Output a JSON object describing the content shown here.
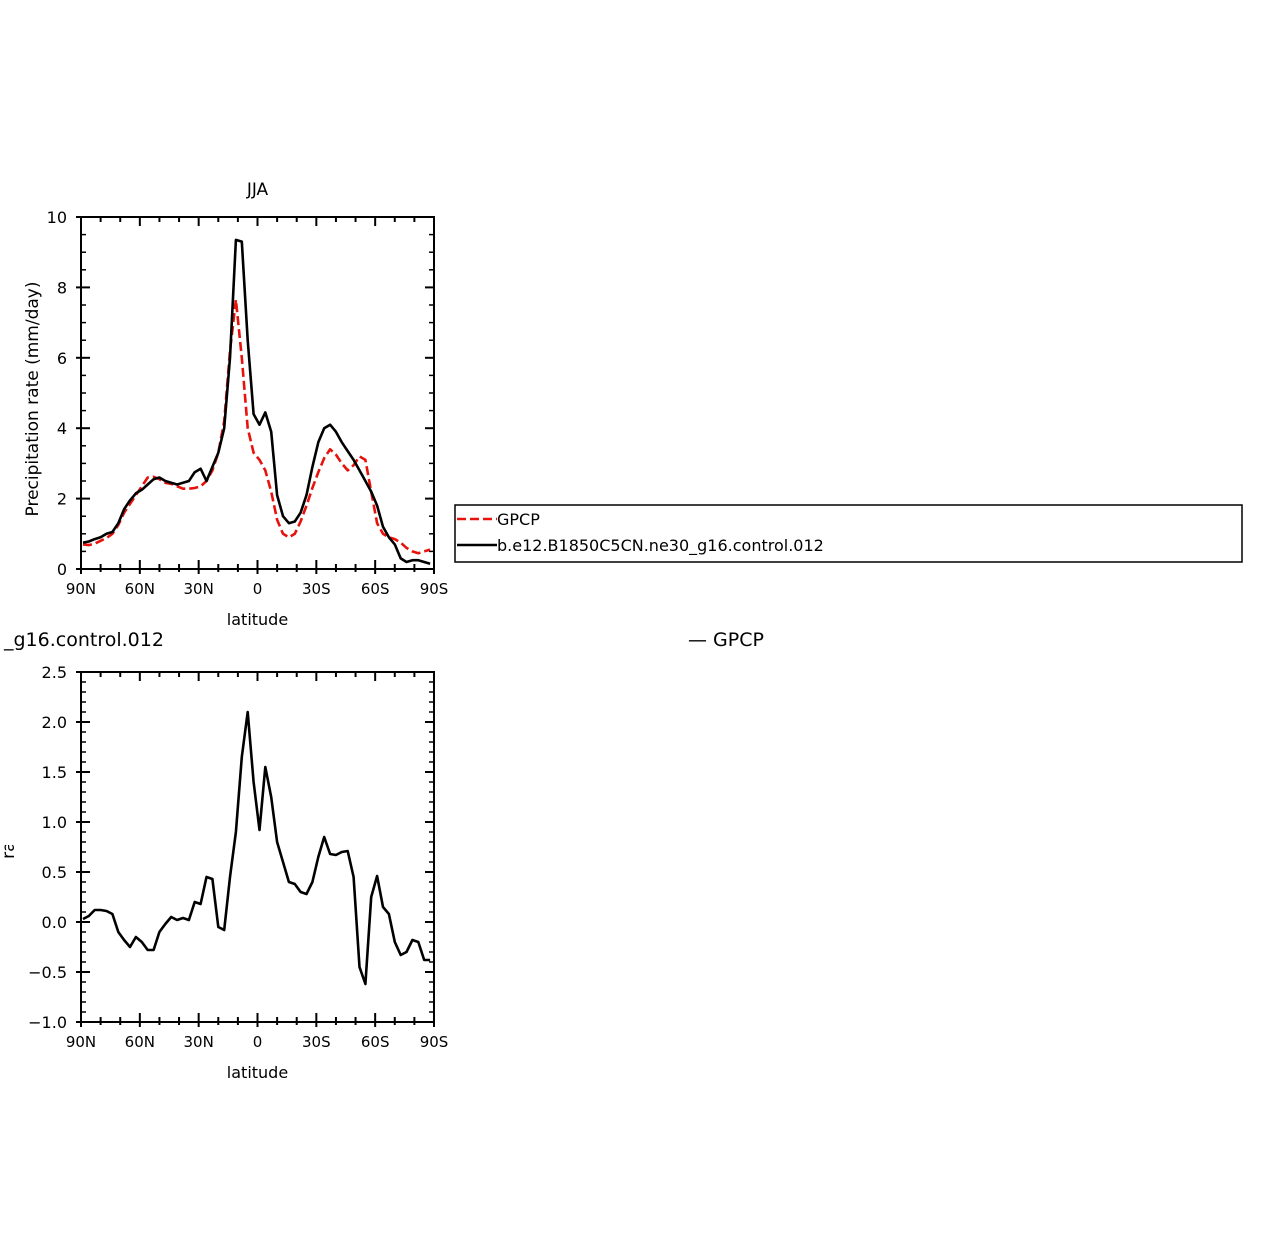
{
  "chart_data": [
    {
      "type": "line",
      "title": "JJA",
      "xlabel": "latitude",
      "ylabel": "Precipitation rate (mm/day)",
      "xlim": [
        90,
        -90
      ],
      "ylim": [
        0,
        10
      ],
      "xticks": [
        90,
        60,
        30,
        0,
        -30,
        -60,
        -90
      ],
      "xtick_labels": [
        "90N",
        "60N",
        "30N",
        "0",
        "30S",
        "60S",
        "90S"
      ],
      "yticks": [
        0,
        2,
        4,
        6,
        8,
        10
      ],
      "ytick_labels": [
        "0",
        "2",
        "4",
        "6",
        "8",
        "10"
      ],
      "legend": {
        "placement": "right, outside plot",
        "entries": [
          "GPCP",
          "b.e12.B1850C5CN.ne30_g16.control.012"
        ]
      },
      "series": [
        {
          "name": "GPCP",
          "color": "#e8120c",
          "dash": "dashed",
          "x": [
            89,
            86,
            83,
            80,
            77,
            74,
            71,
            68,
            65,
            62,
            59,
            56,
            53,
            50,
            47,
            44,
            41,
            38,
            35,
            32,
            29,
            26,
            23,
            20,
            17,
            14,
            11,
            8,
            5,
            2,
            -1,
            -4,
            -7,
            -10,
            -13,
            -16,
            -19,
            -22,
            -25,
            -28,
            -31,
            -34,
            -37,
            -40,
            -43,
            -46,
            -49,
            -52,
            -55,
            -58,
            -61,
            -64,
            -67,
            -70,
            -73,
            -76,
            -79,
            -82,
            -85,
            -88
          ],
          "y": [
            0.7,
            0.68,
            0.72,
            0.8,
            0.88,
            1.0,
            1.25,
            1.6,
            1.85,
            2.1,
            2.35,
            2.6,
            2.62,
            2.55,
            2.45,
            2.42,
            2.35,
            2.28,
            2.28,
            2.3,
            2.35,
            2.5,
            2.8,
            3.3,
            4.2,
            6.2,
            7.65,
            6.0,
            4.0,
            3.3,
            3.1,
            2.8,
            2.2,
            1.4,
            1.0,
            0.9,
            1.0,
            1.35,
            1.8,
            2.3,
            2.75,
            3.15,
            3.4,
            3.25,
            3.0,
            2.8,
            2.95,
            3.2,
            3.1,
            2.2,
            1.3,
            1.0,
            0.9,
            0.85,
            0.75,
            0.6,
            0.5,
            0.45,
            0.5,
            0.55
          ]
        },
        {
          "name": "b.e12.B1850C5CN.ne30_g16.control.012",
          "color": "#000000",
          "dash": "solid",
          "x": [
            89,
            86,
            83,
            80,
            77,
            74,
            71,
            68,
            65,
            62,
            59,
            56,
            53,
            50,
            47,
            44,
            41,
            38,
            35,
            32,
            29,
            26,
            23,
            20,
            17,
            14,
            11,
            8,
            5,
            2,
            -1,
            -4,
            -7,
            -10,
            -13,
            -16,
            -19,
            -22,
            -25,
            -28,
            -31,
            -34,
            -37,
            -40,
            -43,
            -46,
            -49,
            -52,
            -55,
            -58,
            -61,
            -64,
            -67,
            -70,
            -73,
            -76,
            -79,
            -82,
            -85,
            -88
          ],
          "y": [
            0.75,
            0.78,
            0.85,
            0.9,
            1.0,
            1.05,
            1.3,
            1.7,
            1.95,
            2.15,
            2.25,
            2.4,
            2.55,
            2.6,
            2.5,
            2.45,
            2.4,
            2.45,
            2.5,
            2.75,
            2.85,
            2.5,
            2.9,
            3.3,
            4.0,
            6.0,
            9.35,
            9.3,
            6.5,
            4.4,
            4.1,
            4.45,
            3.9,
            2.1,
            1.5,
            1.3,
            1.35,
            1.6,
            2.1,
            2.9,
            3.6,
            4.0,
            4.1,
            3.9,
            3.6,
            3.35,
            3.1,
            2.8,
            2.5,
            2.2,
            1.8,
            1.2,
            0.9,
            0.7,
            0.3,
            0.2,
            0.25,
            0.25,
            0.2,
            0.15
          ]
        }
      ]
    },
    {
      "type": "line",
      "title": "_g16.control.012",
      "title_right": "— GPCP",
      "xlabel": "latitude",
      "ylabel": "Precipitation rate (mm/day)",
      "xlim": [
        90,
        -90
      ],
      "ylim": [
        -1.0,
        2.5
      ],
      "xticks": [
        90,
        60,
        30,
        0,
        -30,
        -60,
        -90
      ],
      "xtick_labels": [
        "90N",
        "60N",
        "30N",
        "0",
        "30S",
        "60S",
        "90S"
      ],
      "yticks": [
        -1.0,
        -0.5,
        0.0,
        0.5,
        1.0,
        1.5,
        2.0,
        2.5
      ],
      "ytick_labels": [
        "−1.0",
        "−0.5",
        "0.0",
        "0.5",
        "1.0",
        "1.5",
        "2.0",
        "2.5"
      ],
      "series": [
        {
          "color": "#000000",
          "dash": "solid",
          "x": [
            89,
            86,
            83,
            80,
            77,
            74,
            71,
            68,
            65,
            62,
            59,
            56,
            53,
            50,
            47,
            44,
            41,
            38,
            35,
            32,
            29,
            26,
            23,
            20,
            17,
            14,
            11,
            8,
            5,
            2,
            -1,
            -4,
            -7,
            -10,
            -13,
            -16,
            -19,
            -22,
            -25,
            -28,
            -31,
            -34,
            -37,
            -40,
            -43,
            -46,
            -49,
            -52,
            -55,
            -58,
            -61,
            -64,
            -67,
            -70,
            -73,
            -76,
            -79,
            -82,
            -85,
            -88
          ],
          "y": [
            0.03,
            0.06,
            0.12,
            0.12,
            0.11,
            0.08,
            -0.1,
            -0.18,
            -0.25,
            -0.15,
            -0.2,
            -0.28,
            -0.28,
            -0.1,
            -0.02,
            0.05,
            0.02,
            0.04,
            0.02,
            0.2,
            0.18,
            0.45,
            0.43,
            -0.05,
            -0.08,
            0.45,
            0.9,
            1.65,
            2.1,
            1.4,
            0.92,
            1.55,
            1.25,
            0.8,
            0.6,
            0.4,
            0.38,
            0.3,
            0.28,
            0.4,
            0.65,
            0.85,
            0.68,
            0.67,
            0.7,
            0.71,
            0.45,
            -0.45,
            -0.62,
            0.25,
            0.46,
            0.15,
            0.08,
            -0.2,
            -0.33,
            -0.3,
            -0.18,
            -0.2,
            -0.38,
            -0.38
          ]
        }
      ]
    }
  ]
}
